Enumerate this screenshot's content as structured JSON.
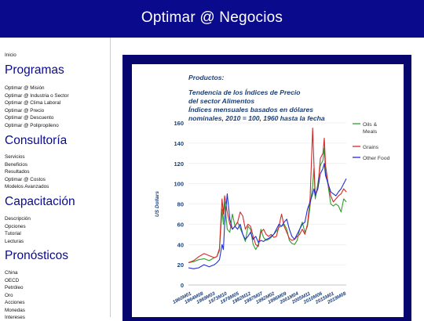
{
  "header": {
    "title": "Optimar @ Negocios"
  },
  "sidebar": {
    "home": "Inicio",
    "sections": [
      {
        "title": "Programas",
        "items": [
          "Optimar @ Misión",
          "Optimar @ Industria o Sector",
          "Optimar @ Clima Laboral",
          "Optimar @ Precio",
          "Optimar @ Descuento",
          "Optimar @ Polipropileno"
        ]
      },
      {
        "title": "Consultoría",
        "items": [
          "Servicios",
          "Beneficios",
          "Resultados",
          "Optimar @ Costos",
          "Modelos Avanzados"
        ]
      },
      {
        "title": "Capacitación",
        "items": [
          "Descripción",
          "Opciones",
          "Tutorial",
          "Lecturas"
        ]
      },
      {
        "title": "Pronósticos",
        "items": [
          "China",
          "OECD",
          "Petróleo",
          "Oro",
          "Acciones",
          "Monedas",
          "Intereses"
        ]
      }
    ]
  },
  "colors": {
    "header_bg": "#0a0a8c",
    "frame_bg": "#06066e",
    "heading": "#0a0a8c",
    "chart_title": "#1a3f78"
  },
  "chart_data": {
    "type": "line",
    "title_lines": [
      "Productos:",
      "",
      "Tendencia de los Índices de Precio",
      "del sector Alimentos",
      "Índices mensuales basados en dólares",
      "nominales, 2010 = 100, 1960 hasta la fecha"
    ],
    "ylabel": "US Dollars",
    "xlabel": "",
    "ylim": [
      0,
      160
    ],
    "y_ticks": [
      0,
      20,
      40,
      60,
      80,
      100,
      120,
      140,
      160
    ],
    "x_tick_labels": [
      "1960M01",
      "1964M08",
      "1969M03",
      "1973M10",
      "1978M05",
      "1982M12",
      "1987M07",
      "1992M02",
      "1996M09",
      "2001M04",
      "2005M11",
      "2010M06",
      "2015M01",
      "2019M08"
    ],
    "x_range": [
      1960,
      2021
    ],
    "grid": true,
    "legend_position": "right",
    "series": [
      {
        "name": "Oils & Meals",
        "color": "#2e9e2e",
        "x": [
          1960,
          1962,
          1964,
          1966,
          1968,
          1970,
          1971,
          1972,
          1973,
          1973.5,
          1974,
          1975,
          1976,
          1977,
          1978,
          1979,
          1980,
          1981,
          1982,
          1983,
          1984,
          1985,
          1986,
          1987,
          1988,
          1989,
          1990,
          1991,
          1992,
          1993,
          1994,
          1995,
          1996,
          1997,
          1998,
          1999,
          2000,
          2001,
          2002,
          2003,
          2004,
          2005,
          2006,
          2007,
          2008,
          2008.5,
          2009,
          2010,
          2011,
          2012,
          2012.5,
          2013,
          2014,
          2015,
          2016,
          2017,
          2018,
          2019,
          2020,
          2021
        ],
        "y": [
          22,
          23,
          25,
          26,
          24,
          27,
          28,
          34,
          75,
          60,
          82,
          55,
          52,
          70,
          58,
          62,
          56,
          50,
          43,
          58,
          55,
          40,
          35,
          40,
          55,
          47,
          44,
          45,
          47,
          50,
          53,
          57,
          58,
          60,
          55,
          44,
          41,
          40,
          44,
          55,
          62,
          52,
          58,
          78,
          98,
          115,
          85,
          100,
          118,
          123,
          135,
          112,
          98,
          80,
          78,
          80,
          78,
          72,
          85,
          82
        ]
      },
      {
        "name": "Grains",
        "color": "#d42a2a",
        "x": [
          1960,
          1962,
          1964,
          1966,
          1968,
          1970,
          1971,
          1972,
          1973,
          1973.5,
          1974,
          1975,
          1976,
          1977,
          1978,
          1979,
          1980,
          1981,
          1982,
          1983,
          1984,
          1985,
          1986,
          1987,
          1988,
          1989,
          1990,
          1991,
          1992,
          1993,
          1994,
          1995,
          1996,
          1997,
          1998,
          1999,
          2000,
          2001,
          2002,
          2003,
          2004,
          2005,
          2006,
          2007,
          2008,
          2008.5,
          2009,
          2010,
          2011,
          2012,
          2012.5,
          2013,
          2014,
          2015,
          2016,
          2017,
          2018,
          2019,
          2020,
          2021
        ],
        "y": [
          22,
          24,
          28,
          31,
          29,
          27,
          28,
          36,
          85,
          70,
          88,
          72,
          60,
          55,
          58,
          62,
          72,
          68,
          55,
          60,
          58,
          48,
          40,
          38,
          52,
          55,
          50,
          48,
          50,
          47,
          48,
          58,
          70,
          58,
          52,
          46,
          44,
          45,
          48,
          50,
          55,
          50,
          60,
          85,
          155,
          120,
          90,
          95,
          125,
          130,
          145,
          118,
          100,
          88,
          82,
          85,
          88,
          90,
          95,
          92
        ]
      },
      {
        "name": "Other Food",
        "color": "#1f2fd6",
        "x": [
          1960,
          1962,
          1964,
          1966,
          1968,
          1970,
          1971,
          1972,
          1973,
          1973.5,
          1974,
          1975,
          1976,
          1977,
          1978,
          1979,
          1980,
          1981,
          1982,
          1983,
          1984,
          1985,
          1986,
          1987,
          1988,
          1989,
          1990,
          1991,
          1992,
          1993,
          1994,
          1995,
          1996,
          1997,
          1998,
          1999,
          2000,
          2001,
          2002,
          2003,
          2004,
          2005,
          2006,
          2007,
          2008,
          2008.5,
          2009,
          2010,
          2011,
          2012,
          2012.5,
          2013,
          2014,
          2015,
          2016,
          2017,
          2018,
          2019,
          2020,
          2021
        ],
        "y": [
          17,
          16,
          17,
          20,
          18,
          20,
          22,
          25,
          40,
          35,
          60,
          90,
          65,
          55,
          58,
          55,
          60,
          50,
          45,
          48,
          52,
          45,
          48,
          42,
          44,
          43,
          45,
          46,
          48,
          50,
          55,
          60,
          58,
          62,
          65,
          55,
          48,
          45,
          50,
          55,
          60,
          62,
          75,
          82,
          90,
          95,
          88,
          95,
          110,
          115,
          120,
          108,
          100,
          92,
          90,
          88,
          92,
          95,
          100,
          105
        ]
      }
    ]
  }
}
